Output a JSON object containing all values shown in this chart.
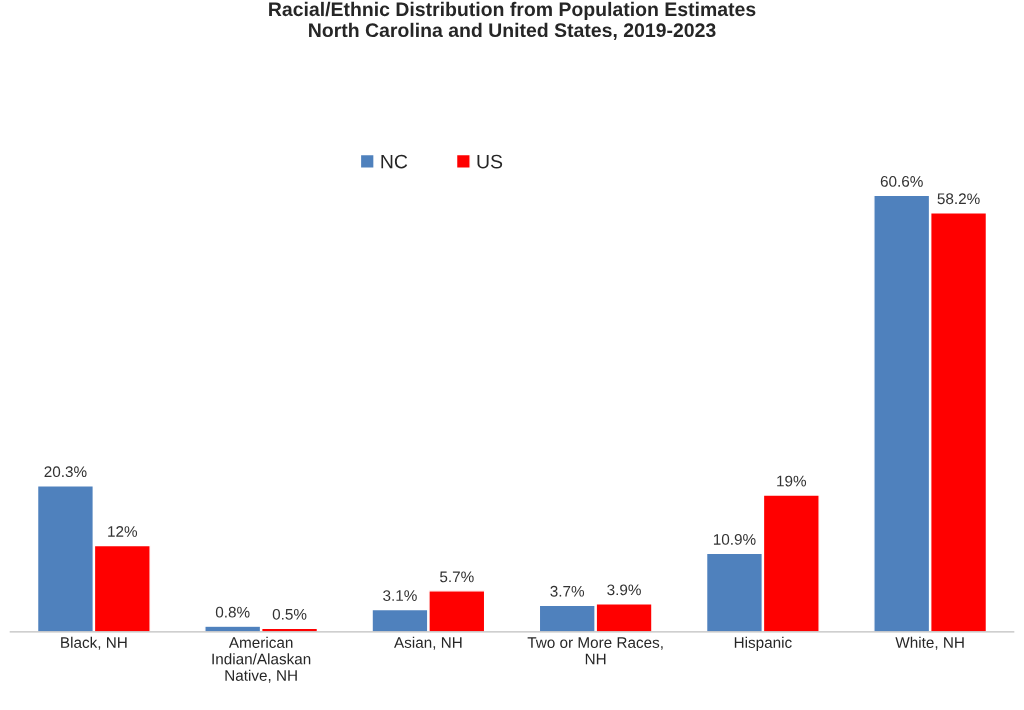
{
  "chart_data": {
    "type": "bar",
    "title": "Racial/Ethnic Distribution from Population Estimates\nNorth Carolina and United States, 2019-2023",
    "categories": [
      "Black, NH",
      "American\nIndian/Alaskan\nNative, NH",
      "Asian, NH",
      "Two or More Races,\nNH",
      "Hispanic",
      "White, NH"
    ],
    "series": [
      {
        "name": "NC",
        "color": "#4f81bd",
        "values": [
          20.3,
          0.8,
          3.1,
          3.7,
          10.9,
          60.6
        ],
        "value_labels": [
          "20.3%",
          "0.8%",
          "3.1%",
          "3.7%",
          "10.9%",
          "60.6%"
        ]
      },
      {
        "name": "US",
        "color": "#ff0000",
        "values": [
          12,
          0.5,
          5.7,
          3.9,
          19,
          58.2
        ],
        "value_labels": [
          "12%",
          "0.5%",
          "5.7%",
          "3.9%",
          "19%",
          "58.2%"
        ]
      }
    ],
    "legend": "top",
    "grid": false,
    "tick_labels": "x"
  }
}
